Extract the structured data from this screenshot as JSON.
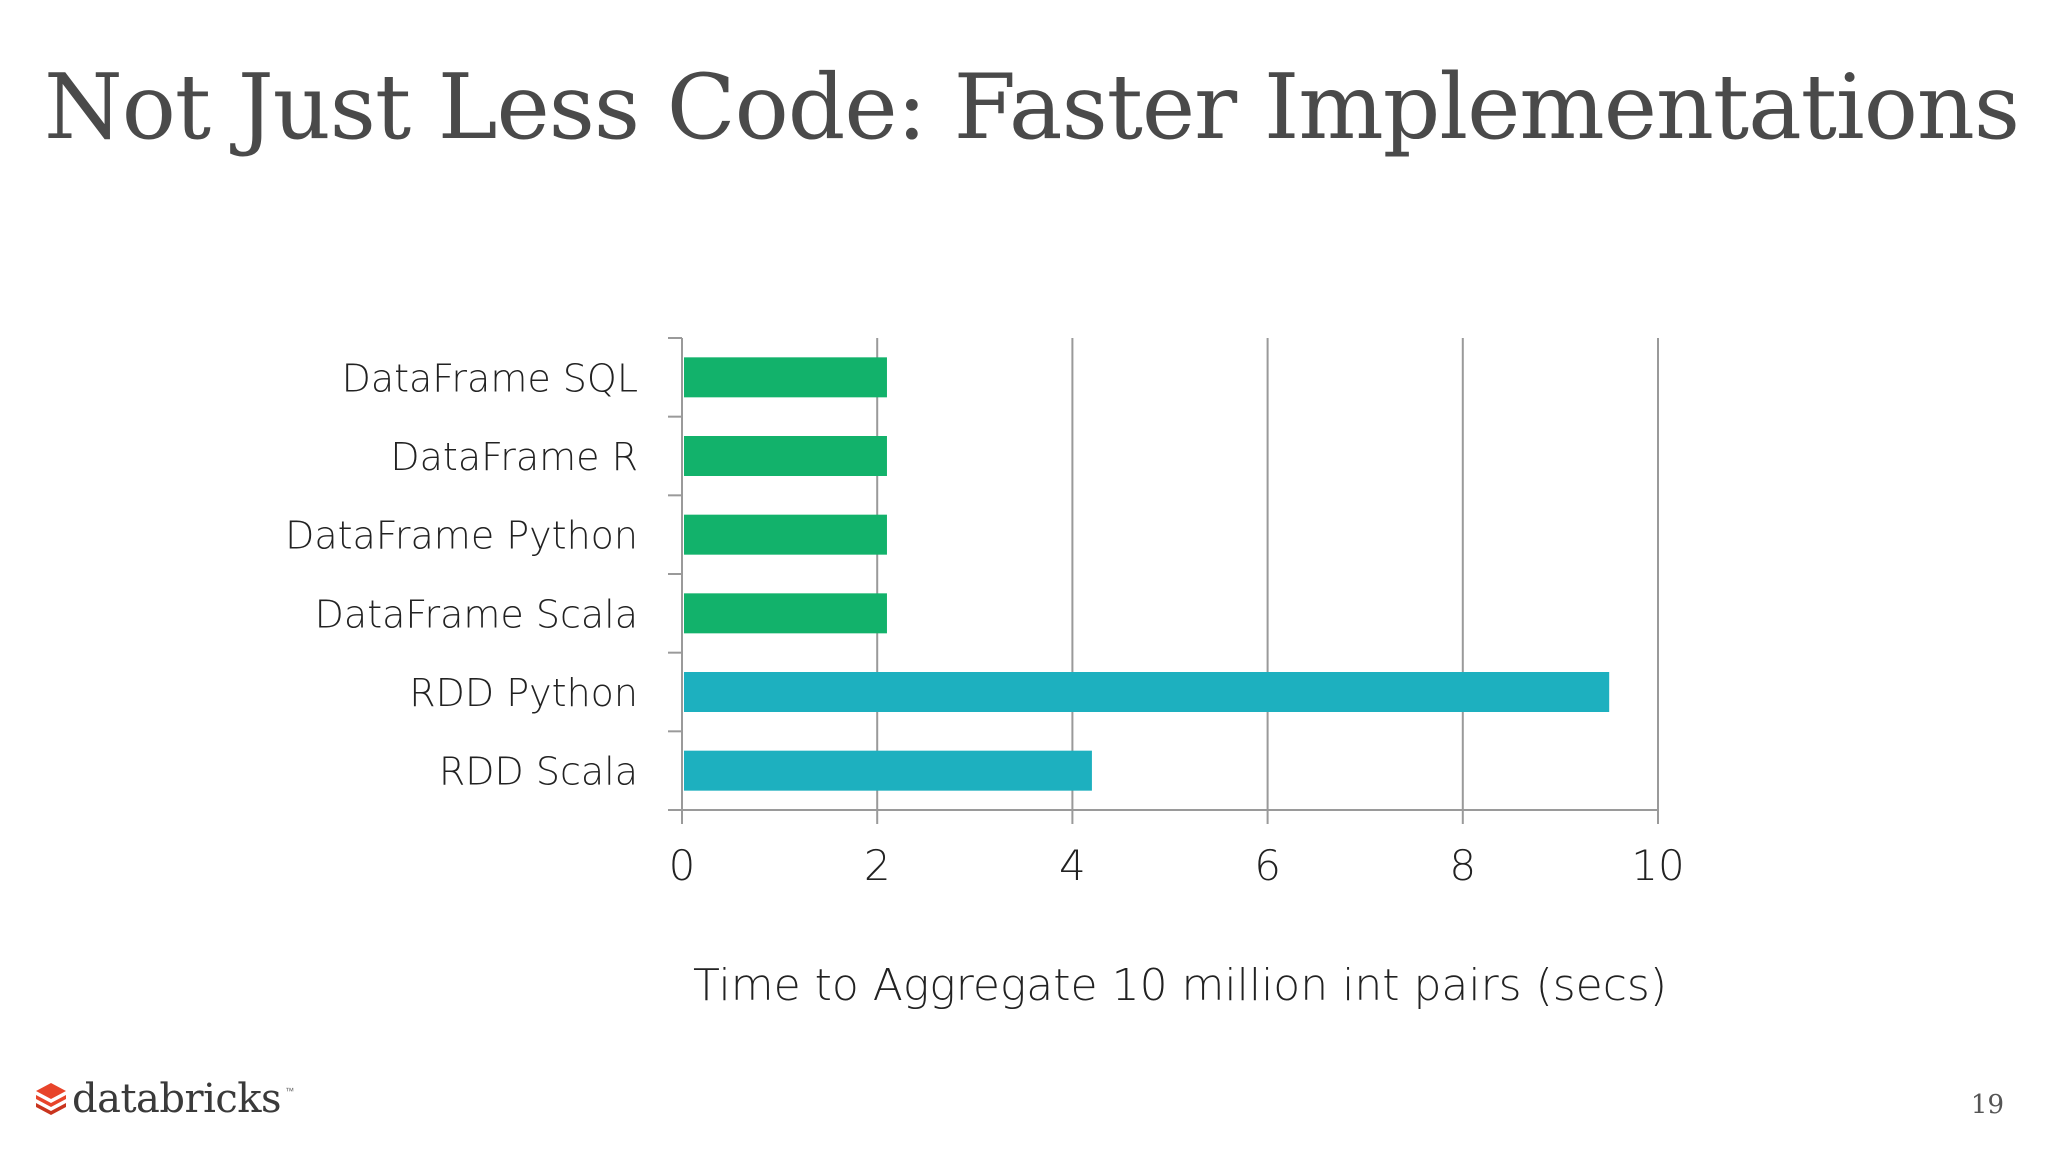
{
  "slide": {
    "title": "Not Just Less Code: Faster Implementations",
    "page_number": "19",
    "logo_text": "databricks",
    "logo_tm": "™"
  },
  "colors": {
    "dataframe_bar": "#12b26b",
    "rdd_bar": "#1db0bf",
    "grid": "#9a9a9a",
    "text": "#222222",
    "logo_mark": "#e8442a"
  },
  "chart_data": {
    "type": "bar",
    "orientation": "horizontal",
    "categories": [
      "DataFrame SQL",
      "DataFrame R",
      "DataFrame Python",
      "DataFrame Scala",
      "RDD Python",
      "RDD Scala"
    ],
    "values": [
      2.1,
      2.1,
      2.1,
      2.1,
      9.5,
      4.2
    ],
    "bar_colors": [
      "#12b26b",
      "#12b26b",
      "#12b26b",
      "#12b26b",
      "#1db0bf",
      "#1db0bf"
    ],
    "xlabel": "Time to Aggregate 10 million int pairs (secs)",
    "xlim": [
      0,
      10
    ],
    "xticks": [
      0,
      2,
      4,
      6,
      8,
      10
    ],
    "grid": true
  }
}
